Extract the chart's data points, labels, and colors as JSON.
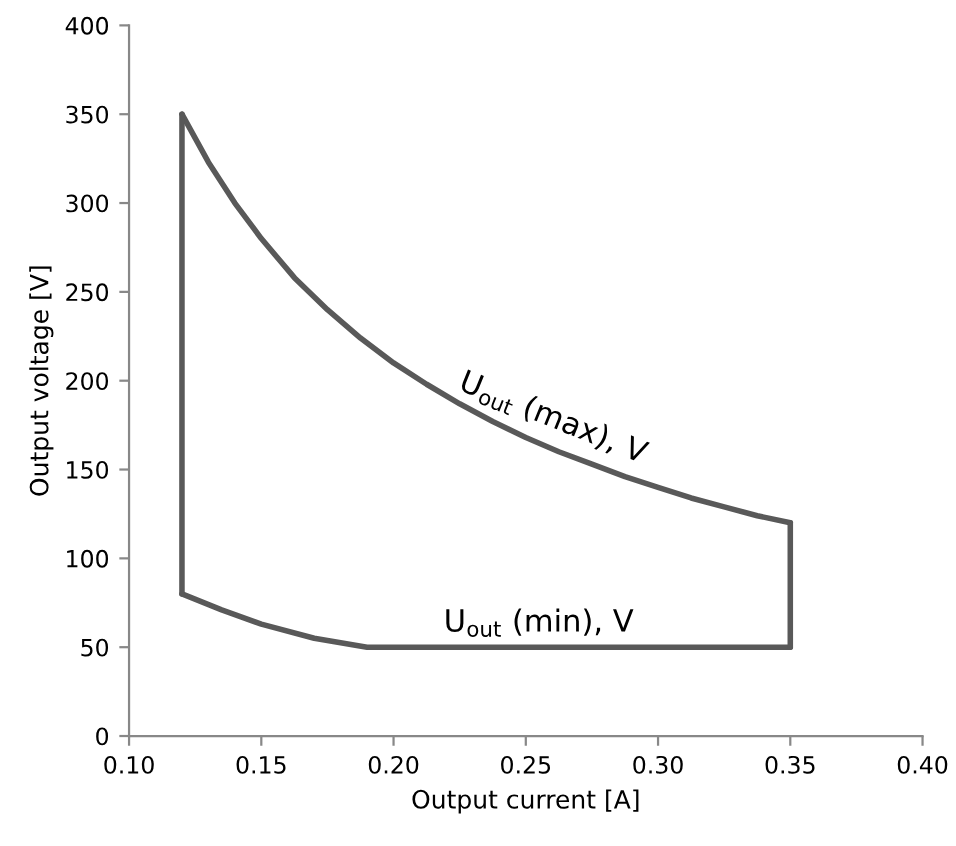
{
  "chart_data": {
    "type": "line",
    "xlabel": "Output current [A]",
    "ylabel": "Output voltage [V]",
    "series": [
      {
        "color": "#595959",
        "x": [
          0.12,
          0.13,
          0.14,
          0.15,
          0.1625,
          0.175,
          0.1875,
          0.2,
          0.2125,
          0.225,
          0.2375,
          0.25,
          0.2625,
          0.275,
          0.2875,
          0.3,
          0.3125,
          0.325,
          0.3375,
          0.35
        ],
        "values": [
          350,
          323,
          300,
          280,
          258,
          240,
          224,
          210,
          198,
          187,
          177,
          168,
          160,
          153,
          146,
          140,
          134,
          129,
          124,
          120
        ]
      },
      {
        "color": "#595959",
        "x": [
          0.12,
          0.135,
          0.15,
          0.17,
          0.19,
          0.35
        ],
        "values": [
          80,
          71,
          63,
          55,
          50,
          50
        ]
      },
      {
        "color": "#595959",
        "x": [
          0.12,
          0.12
        ],
        "values": [
          80,
          350
        ]
      },
      {
        "color": "#595959",
        "x": [
          0.35,
          0.35
        ],
        "values": [
          50,
          120
        ]
      }
    ],
    "annotations": [
      "U$_{out}$ (max), V",
      "U$_{out}$ (min), V"
    ],
    "xlim": [
      0.1,
      0.4
    ],
    "ylim": [
      0,
      400
    ],
    "xticks": [
      {
        "value": 0.1,
        "label": "0.10"
      },
      0.15,
      {
        "value": 0.2,
        "label": "0.20"
      },
      0.25,
      {
        "value": 0.3,
        "label": "0.30"
      },
      0.35,
      {
        "value": 0.4,
        "label": "0.40"
      }
    ],
    "yticks": [
      0,
      50,
      100,
      150,
      200,
      250,
      300,
      350,
      400
    ],
    "grid": false,
    "legend": false,
    "marker": "none",
    "line_style": "solid"
  }
}
